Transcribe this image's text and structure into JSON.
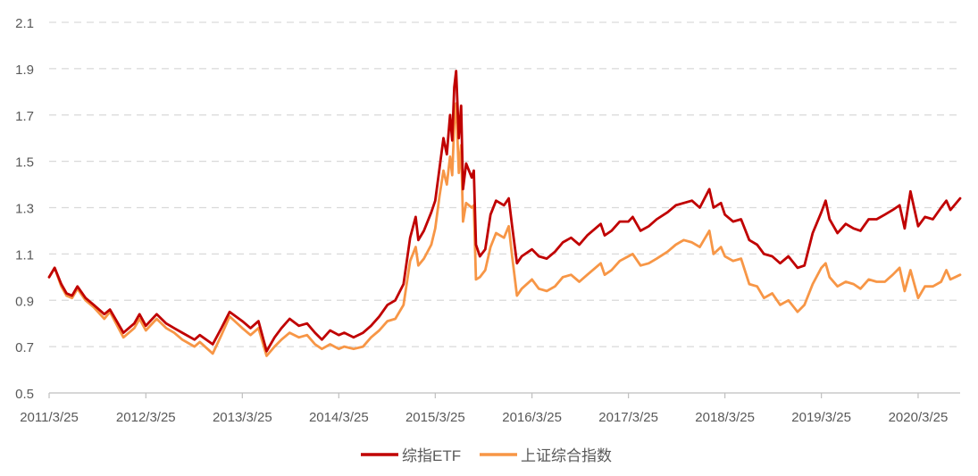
{
  "colors": {
    "etf": "#C00000",
    "index": "#F79646",
    "grid": "#D9D9D9",
    "axis": "#BFBFBF",
    "text": "#595959"
  },
  "chart_data": {
    "type": "line",
    "title": "",
    "xlabel": "",
    "ylabel": "",
    "ylim": [
      0.5,
      2.1
    ],
    "yticks": [
      "0.5",
      "0.7",
      "0.9",
      "1.1",
      "1.3",
      "1.5",
      "1.7",
      "1.9",
      "2.1"
    ],
    "xlim": [
      "2011-03-25",
      "2020-08-31"
    ],
    "xticks": [
      {
        "label": "2011/3/25",
        "date": "2011-03-25"
      },
      {
        "label": "2012/3/25",
        "date": "2012-03-25"
      },
      {
        "label": "2013/3/25",
        "date": "2013-03-25"
      },
      {
        "label": "2014/3/25",
        "date": "2014-03-25"
      },
      {
        "label": "2015/3/25",
        "date": "2015-03-25"
      },
      {
        "label": "2016/3/25",
        "date": "2016-03-25"
      },
      {
        "label": "2017/3/25",
        "date": "2017-03-25"
      },
      {
        "label": "2018/3/25",
        "date": "2018-03-25"
      },
      {
        "label": "2019/3/25",
        "date": "2019-03-25"
      },
      {
        "label": "2020/3/25",
        "date": "2020-03-25"
      }
    ],
    "grid": true,
    "legend_position": "bottom",
    "series": [
      {
        "name": "综指ETF",
        "color": "#C00000",
        "points": [
          [
            "2011-03-25",
            1.0
          ],
          [
            "2011-04-15",
            1.04
          ],
          [
            "2011-05-10",
            0.97
          ],
          [
            "2011-05-30",
            0.93
          ],
          [
            "2011-06-20",
            0.92
          ],
          [
            "2011-07-10",
            0.96
          ],
          [
            "2011-08-10",
            0.91
          ],
          [
            "2011-09-10",
            0.88
          ],
          [
            "2011-10-20",
            0.84
          ],
          [
            "2011-11-10",
            0.86
          ],
          [
            "2011-12-31",
            0.76
          ],
          [
            "2012-02-10",
            0.8
          ],
          [
            "2012-03-01",
            0.84
          ],
          [
            "2012-03-25",
            0.79
          ],
          [
            "2012-05-05",
            0.84
          ],
          [
            "2012-06-10",
            0.8
          ],
          [
            "2012-07-10",
            0.78
          ],
          [
            "2012-08-10",
            0.76
          ],
          [
            "2012-09-25",
            0.73
          ],
          [
            "2012-10-15",
            0.75
          ],
          [
            "2012-12-03",
            0.71
          ],
          [
            "2013-01-05",
            0.78
          ],
          [
            "2013-02-05",
            0.85
          ],
          [
            "2013-03-25",
            0.81
          ],
          [
            "2013-04-25",
            0.78
          ],
          [
            "2013-05-25",
            0.81
          ],
          [
            "2013-06-25",
            0.68
          ],
          [
            "2013-07-25",
            0.74
          ],
          [
            "2013-08-20",
            0.78
          ],
          [
            "2013-09-20",
            0.82
          ],
          [
            "2013-10-25",
            0.79
          ],
          [
            "2013-11-25",
            0.8
          ],
          [
            "2013-12-25",
            0.76
          ],
          [
            "2014-01-20",
            0.73
          ],
          [
            "2014-02-20",
            0.77
          ],
          [
            "2014-03-25",
            0.75
          ],
          [
            "2014-04-15",
            0.76
          ],
          [
            "2014-05-20",
            0.74
          ],
          [
            "2014-06-25",
            0.76
          ],
          [
            "2014-07-25",
            0.79
          ],
          [
            "2014-08-25",
            0.83
          ],
          [
            "2014-09-25",
            0.88
          ],
          [
            "2014-10-25",
            0.9
          ],
          [
            "2014-11-25",
            0.97
          ],
          [
            "2014-12-20",
            1.17
          ],
          [
            "2015-01-10",
            1.26
          ],
          [
            "2015-01-20",
            1.16
          ],
          [
            "2015-02-10",
            1.2
          ],
          [
            "2015-03-10",
            1.28
          ],
          [
            "2015-03-25",
            1.33
          ],
          [
            "2015-04-10",
            1.47
          ],
          [
            "2015-04-25",
            1.6
          ],
          [
            "2015-05-08",
            1.53
          ],
          [
            "2015-05-20",
            1.7
          ],
          [
            "2015-05-28",
            1.59
          ],
          [
            "2015-06-05",
            1.82
          ],
          [
            "2015-06-12",
            1.89
          ],
          [
            "2015-06-22",
            1.6
          ],
          [
            "2015-07-01",
            1.74
          ],
          [
            "2015-07-08",
            1.38
          ],
          [
            "2015-07-20",
            1.49
          ],
          [
            "2015-08-10",
            1.43
          ],
          [
            "2015-08-18",
            1.46
          ],
          [
            "2015-08-26",
            1.14
          ],
          [
            "2015-09-10",
            1.09
          ],
          [
            "2015-09-30",
            1.12
          ],
          [
            "2015-10-20",
            1.27
          ],
          [
            "2015-11-10",
            1.33
          ],
          [
            "2015-12-10",
            1.31
          ],
          [
            "2015-12-28",
            1.34
          ],
          [
            "2016-01-10",
            1.22
          ],
          [
            "2016-01-28",
            1.06
          ],
          [
            "2016-02-15",
            1.09
          ],
          [
            "2016-03-25",
            1.12
          ],
          [
            "2016-04-20",
            1.09
          ],
          [
            "2016-05-20",
            1.08
          ],
          [
            "2016-06-20",
            1.11
          ],
          [
            "2016-07-20",
            1.15
          ],
          [
            "2016-08-20",
            1.17
          ],
          [
            "2016-09-20",
            1.14
          ],
          [
            "2016-10-20",
            1.18
          ],
          [
            "2016-11-20",
            1.21
          ],
          [
            "2016-12-10",
            1.23
          ],
          [
            "2016-12-25",
            1.18
          ],
          [
            "2017-01-20",
            1.2
          ],
          [
            "2017-02-20",
            1.24
          ],
          [
            "2017-03-25",
            1.24
          ],
          [
            "2017-04-10",
            1.26
          ],
          [
            "2017-05-10",
            1.2
          ],
          [
            "2017-06-10",
            1.22
          ],
          [
            "2017-07-10",
            1.25
          ],
          [
            "2017-08-20",
            1.28
          ],
          [
            "2017-09-20",
            1.31
          ],
          [
            "2017-10-20",
            1.32
          ],
          [
            "2017-11-20",
            1.33
          ],
          [
            "2017-12-20",
            1.3
          ],
          [
            "2018-01-25",
            1.38
          ],
          [
            "2018-02-10",
            1.3
          ],
          [
            "2018-03-10",
            1.32
          ],
          [
            "2018-03-25",
            1.27
          ],
          [
            "2018-04-25",
            1.24
          ],
          [
            "2018-05-25",
            1.25
          ],
          [
            "2018-06-25",
            1.16
          ],
          [
            "2018-07-25",
            1.14
          ],
          [
            "2018-08-20",
            1.1
          ],
          [
            "2018-09-20",
            1.09
          ],
          [
            "2018-10-20",
            1.06
          ],
          [
            "2018-11-20",
            1.09
          ],
          [
            "2018-12-25",
            1.04
          ],
          [
            "2019-01-20",
            1.05
          ],
          [
            "2019-02-20",
            1.19
          ],
          [
            "2019-03-25",
            1.28
          ],
          [
            "2019-04-10",
            1.33
          ],
          [
            "2019-04-25",
            1.25
          ],
          [
            "2019-05-25",
            1.19
          ],
          [
            "2019-06-25",
            1.23
          ],
          [
            "2019-07-25",
            1.21
          ],
          [
            "2019-08-20",
            1.2
          ],
          [
            "2019-09-20",
            1.25
          ],
          [
            "2019-10-20",
            1.25
          ],
          [
            "2019-11-20",
            1.27
          ],
          [
            "2019-12-20",
            1.29
          ],
          [
            "2020-01-15",
            1.31
          ],
          [
            "2020-02-03",
            1.21
          ],
          [
            "2020-02-25",
            1.37
          ],
          [
            "2020-03-25",
            1.22
          ],
          [
            "2020-04-20",
            1.26
          ],
          [
            "2020-05-20",
            1.25
          ],
          [
            "2020-06-20",
            1.3
          ],
          [
            "2020-07-10",
            1.33
          ],
          [
            "2020-07-25",
            1.29
          ],
          [
            "2020-08-31",
            1.34
          ]
        ]
      },
      {
        "name": "上证综合指数",
        "color": "#F79646",
        "points": [
          [
            "2011-03-25",
            1.0
          ],
          [
            "2011-04-15",
            1.04
          ],
          [
            "2011-05-10",
            0.96
          ],
          [
            "2011-05-30",
            0.92
          ],
          [
            "2011-06-20",
            0.91
          ],
          [
            "2011-07-10",
            0.95
          ],
          [
            "2011-08-10",
            0.9
          ],
          [
            "2011-09-10",
            0.87
          ],
          [
            "2011-10-20",
            0.82
          ],
          [
            "2011-11-10",
            0.85
          ],
          [
            "2011-12-31",
            0.74
          ],
          [
            "2012-02-10",
            0.78
          ],
          [
            "2012-03-01",
            0.82
          ],
          [
            "2012-03-25",
            0.77
          ],
          [
            "2012-05-05",
            0.82
          ],
          [
            "2012-06-10",
            0.78
          ],
          [
            "2012-07-10",
            0.76
          ],
          [
            "2012-08-10",
            0.73
          ],
          [
            "2012-09-25",
            0.7
          ],
          [
            "2012-10-15",
            0.72
          ],
          [
            "2012-12-03",
            0.67
          ],
          [
            "2013-01-05",
            0.75
          ],
          [
            "2013-02-05",
            0.83
          ],
          [
            "2013-03-25",
            0.78
          ],
          [
            "2013-04-25",
            0.75
          ],
          [
            "2013-05-25",
            0.78
          ],
          [
            "2013-06-25",
            0.66
          ],
          [
            "2013-07-25",
            0.7
          ],
          [
            "2013-08-20",
            0.73
          ],
          [
            "2013-09-20",
            0.76
          ],
          [
            "2013-10-25",
            0.74
          ],
          [
            "2013-11-25",
            0.75
          ],
          [
            "2013-12-25",
            0.71
          ],
          [
            "2014-01-20",
            0.69
          ],
          [
            "2014-02-20",
            0.71
          ],
          [
            "2014-03-25",
            0.69
          ],
          [
            "2014-04-15",
            0.7
          ],
          [
            "2014-05-20",
            0.69
          ],
          [
            "2014-06-25",
            0.7
          ],
          [
            "2014-07-25",
            0.74
          ],
          [
            "2014-08-25",
            0.77
          ],
          [
            "2014-09-25",
            0.81
          ],
          [
            "2014-10-25",
            0.82
          ],
          [
            "2014-11-25",
            0.88
          ],
          [
            "2014-12-20",
            1.07
          ],
          [
            "2015-01-10",
            1.13
          ],
          [
            "2015-01-20",
            1.05
          ],
          [
            "2015-02-10",
            1.08
          ],
          [
            "2015-03-10",
            1.14
          ],
          [
            "2015-03-25",
            1.21
          ],
          [
            "2015-04-10",
            1.35
          ],
          [
            "2015-04-25",
            1.46
          ],
          [
            "2015-05-08",
            1.4
          ],
          [
            "2015-05-20",
            1.52
          ],
          [
            "2015-05-28",
            1.44
          ],
          [
            "2015-06-05",
            1.66
          ],
          [
            "2015-06-12",
            1.75
          ],
          [
            "2015-06-22",
            1.45
          ],
          [
            "2015-07-01",
            1.57
          ],
          [
            "2015-07-08",
            1.24
          ],
          [
            "2015-07-20",
            1.32
          ],
          [
            "2015-08-10",
            1.3
          ],
          [
            "2015-08-18",
            1.31
          ],
          [
            "2015-08-26",
            0.99
          ],
          [
            "2015-09-10",
            1.0
          ],
          [
            "2015-09-30",
            1.03
          ],
          [
            "2015-10-20",
            1.13
          ],
          [
            "2015-11-10",
            1.19
          ],
          [
            "2015-12-10",
            1.17
          ],
          [
            "2015-12-28",
            1.22
          ],
          [
            "2016-01-10",
            1.09
          ],
          [
            "2016-01-28",
            0.92
          ],
          [
            "2016-02-15",
            0.95
          ],
          [
            "2016-03-25",
            0.99
          ],
          [
            "2016-04-20",
            0.95
          ],
          [
            "2016-05-20",
            0.94
          ],
          [
            "2016-06-20",
            0.96
          ],
          [
            "2016-07-20",
            1.0
          ],
          [
            "2016-08-20",
            1.01
          ],
          [
            "2016-09-20",
            0.98
          ],
          [
            "2016-10-20",
            1.01
          ],
          [
            "2016-11-20",
            1.04
          ],
          [
            "2016-12-10",
            1.06
          ],
          [
            "2016-12-25",
            1.01
          ],
          [
            "2017-01-20",
            1.03
          ],
          [
            "2017-02-20",
            1.07
          ],
          [
            "2017-03-25",
            1.09
          ],
          [
            "2017-04-10",
            1.1
          ],
          [
            "2017-05-10",
            1.05
          ],
          [
            "2017-06-10",
            1.06
          ],
          [
            "2017-07-10",
            1.08
          ],
          [
            "2017-08-20",
            1.11
          ],
          [
            "2017-09-20",
            1.14
          ],
          [
            "2017-10-20",
            1.16
          ],
          [
            "2017-11-20",
            1.15
          ],
          [
            "2017-12-20",
            1.13
          ],
          [
            "2018-01-25",
            1.2
          ],
          [
            "2018-02-10",
            1.1
          ],
          [
            "2018-03-10",
            1.13
          ],
          [
            "2018-03-25",
            1.09
          ],
          [
            "2018-04-25",
            1.07
          ],
          [
            "2018-05-25",
            1.08
          ],
          [
            "2018-06-25",
            0.97
          ],
          [
            "2018-07-25",
            0.96
          ],
          [
            "2018-08-20",
            0.91
          ],
          [
            "2018-09-20",
            0.93
          ],
          [
            "2018-10-20",
            0.88
          ],
          [
            "2018-11-20",
            0.9
          ],
          [
            "2018-12-25",
            0.85
          ],
          [
            "2019-01-20",
            0.88
          ],
          [
            "2019-02-20",
            0.97
          ],
          [
            "2019-03-25",
            1.04
          ],
          [
            "2019-04-10",
            1.06
          ],
          [
            "2019-04-25",
            1.0
          ],
          [
            "2019-05-25",
            0.96
          ],
          [
            "2019-06-25",
            0.98
          ],
          [
            "2019-07-25",
            0.97
          ],
          [
            "2019-08-20",
            0.95
          ],
          [
            "2019-09-20",
            0.99
          ],
          [
            "2019-10-20",
            0.98
          ],
          [
            "2019-11-20",
            0.98
          ],
          [
            "2019-12-20",
            1.01
          ],
          [
            "2020-01-15",
            1.04
          ],
          [
            "2020-02-03",
            0.94
          ],
          [
            "2020-02-25",
            1.03
          ],
          [
            "2020-03-25",
            0.91
          ],
          [
            "2020-04-20",
            0.96
          ],
          [
            "2020-05-20",
            0.96
          ],
          [
            "2020-06-20",
            0.98
          ],
          [
            "2020-07-10",
            1.03
          ],
          [
            "2020-07-25",
            0.99
          ],
          [
            "2020-08-31",
            1.01
          ]
        ]
      }
    ]
  }
}
